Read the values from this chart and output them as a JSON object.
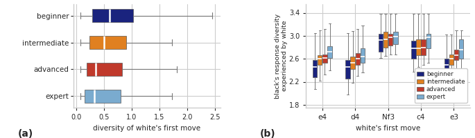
{
  "colors": {
    "beginner": "#1a237e",
    "intermediate": "#e08020",
    "advanced": "#c0392b",
    "expert": "#7aabcf"
  },
  "panel_a": {
    "categories": [
      "beginner",
      "intermediate",
      "advanced",
      "expert"
    ],
    "xlabel": "diversity of white's first move",
    "xlim": [
      -0.05,
      2.6
    ],
    "xticks": [
      0.0,
      0.5,
      1.0,
      1.5,
      2.0,
      2.5
    ],
    "boxes": {
      "beginner": {
        "whislo": 0.07,
        "q1": 0.28,
        "med": 0.6,
        "q3": 1.02,
        "whishi": 2.45
      },
      "intermediate": {
        "whislo": 0.07,
        "q1": 0.24,
        "med": 0.5,
        "q3": 0.9,
        "whishi": 1.72
      },
      "advanced": {
        "whislo": 0.07,
        "q1": 0.18,
        "med": 0.35,
        "q3": 0.82,
        "whishi": 1.82
      },
      "expert": {
        "whislo": 0.07,
        "q1": 0.15,
        "med": 0.32,
        "q3": 0.8,
        "whishi": 1.72
      }
    }
  },
  "panel_b": {
    "moves": [
      "e4",
      "d4",
      "Nf3",
      "c4",
      "e3"
    ],
    "xlabel": "white's first move",
    "ylabel": "black's response diversity\nexperienced by white",
    "ylim": [
      1.75,
      3.55
    ],
    "yticks": [
      1.8,
      2.2,
      2.6,
      3.0,
      3.4
    ],
    "boxes": {
      "e4": {
        "beginner": {
          "whislo": 2.08,
          "q1": 2.28,
          "med": 2.46,
          "q3": 2.58,
          "whishi": 3.05
        },
        "intermediate": {
          "whislo": 2.22,
          "q1": 2.5,
          "med": 2.6,
          "q3": 2.66,
          "whishi": 3.1
        },
        "advanced": {
          "whislo": 2.33,
          "q1": 2.53,
          "med": 2.62,
          "q3": 2.68,
          "whishi": 3.12
        },
        "expert": {
          "whislo": 2.4,
          "q1": 2.62,
          "med": 2.72,
          "q3": 2.82,
          "whishi": 3.22
        }
      },
      "d4": {
        "beginner": {
          "whislo": 1.98,
          "q1": 2.25,
          "med": 2.46,
          "q3": 2.58,
          "whishi": 3.05
        },
        "intermediate": {
          "whislo": 2.18,
          "q1": 2.42,
          "med": 2.53,
          "q3": 2.64,
          "whishi": 3.08
        },
        "advanced": {
          "whislo": 2.3,
          "q1": 2.5,
          "med": 2.6,
          "q3": 2.7,
          "whishi": 3.12
        },
        "expert": {
          "whislo": 2.36,
          "q1": 2.53,
          "med": 2.64,
          "q3": 2.78,
          "whishi": 3.18
        }
      },
      "Nf3": {
        "beginner": {
          "whislo": 2.62,
          "q1": 2.72,
          "med": 2.93,
          "q3": 3.04,
          "whishi": 3.38
        },
        "intermediate": {
          "whislo": 2.65,
          "q1": 2.8,
          "med": 2.94,
          "q3": 3.07,
          "whishi": 3.38
        },
        "advanced": {
          "whislo": 2.67,
          "q1": 2.83,
          "med": 2.97,
          "q3": 3.04,
          "whishi": 3.38
        },
        "expert": {
          "whislo": 2.67,
          "q1": 2.86,
          "med": 2.99,
          "q3": 3.07,
          "whishi": 3.38
        }
      },
      "c4": {
        "beginner": {
          "whislo": 2.38,
          "q1": 2.6,
          "med": 2.78,
          "q3": 2.91,
          "whishi": 3.38
        },
        "intermediate": {
          "whislo": 2.46,
          "q1": 2.66,
          "med": 2.78,
          "q3": 2.94,
          "whishi": 3.38
        },
        "advanced": {
          "whislo": 2.5,
          "q1": 2.66,
          "med": 2.8,
          "q3": 2.94,
          "whishi": 3.38
        },
        "expert": {
          "whislo": 2.53,
          "q1": 2.78,
          "med": 2.97,
          "q3": 3.04,
          "whishi": 3.38
        }
      },
      "e3": {
        "beginner": {
          "whislo": 2.18,
          "q1": 2.38,
          "med": 2.5,
          "q3": 2.6,
          "whishi": 3.02
        },
        "intermediate": {
          "whislo": 2.3,
          "q1": 2.5,
          "med": 2.6,
          "q3": 2.68,
          "whishi": 3.02
        },
        "advanced": {
          "whislo": 2.43,
          "q1": 2.58,
          "med": 2.66,
          "q3": 2.76,
          "whishi": 3.1
        },
        "expert": {
          "whislo": 2.4,
          "q1": 2.6,
          "med": 2.76,
          "q3": 2.94,
          "whishi": 3.1
        }
      }
    }
  },
  "label_a": "(a)",
  "label_b": "(b)"
}
